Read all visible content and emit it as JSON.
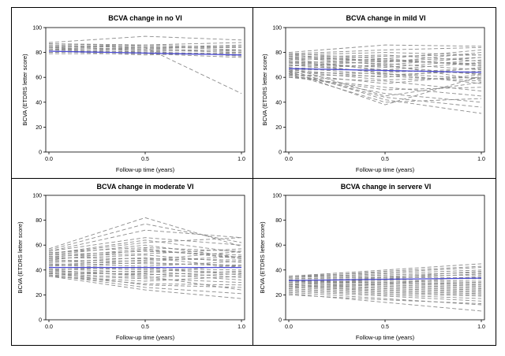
{
  "chart_data": [
    {
      "type": "line",
      "title": "BCVA change in no VI",
      "xlabel": "Follow-up time (years)",
      "ylabel": "BCVA (ETDRS letter score)",
      "xlim": [
        0,
        1
      ],
      "ylim": [
        0,
        100
      ],
      "x_ticks": [
        "0.0",
        "0.5",
        "1.0"
      ],
      "y_ticks": [
        "0",
        "20",
        "40",
        "60",
        "80",
        "100"
      ],
      "x": [
        0,
        0.5,
        1
      ],
      "series": [
        {
          "values": [
            88,
            93,
            90
          ]
        },
        {
          "values": [
            87,
            85,
            82
          ]
        },
        {
          "values": [
            86,
            84,
            47
          ]
        },
        {
          "values": [
            85,
            84,
            86
          ]
        },
        {
          "values": [
            85,
            82,
            80
          ]
        },
        {
          "values": [
            84,
            86,
            88
          ]
        },
        {
          "values": [
            83,
            83,
            85
          ]
        },
        {
          "values": [
            82,
            80,
            79
          ]
        },
        {
          "values": [
            82,
            84,
            84
          ]
        },
        {
          "values": [
            81,
            78,
            80
          ]
        },
        {
          "values": [
            80,
            81,
            77
          ]
        },
        {
          "values": [
            79,
            79,
            78
          ]
        },
        {
          "values": [
            84,
            81,
            82
          ]
        },
        {
          "values": [
            87,
            86,
            84
          ]
        },
        {
          "values": [
            80,
            83,
            81
          ]
        },
        {
          "values": [
            83,
            79,
            76
          ]
        }
      ],
      "mean_line": {
        "values": [
          81,
          79.5,
          78
        ],
        "color": "#4a4ad6"
      },
      "colors": {
        "individual": "#8c8c8c",
        "mean": "#4a4ad6"
      }
    },
    {
      "type": "line",
      "title": "BCVA change in mild VI",
      "xlabel": "Follow-up time (years)",
      "ylabel": "BCVA (ETDRS letter score)",
      "xlim": [
        0,
        1
      ],
      "ylim": [
        0,
        100
      ],
      "x_ticks": [
        "0.0",
        "0.5",
        "1.0"
      ],
      "y_ticks": [
        "0",
        "20",
        "40",
        "60",
        "80",
        "100"
      ],
      "x": [
        0,
        0.5,
        1
      ],
      "series": [
        {
          "values": [
            80,
            86,
            85
          ]
        },
        {
          "values": [
            79,
            82,
            84
          ]
        },
        {
          "values": [
            79,
            75,
            82
          ]
        },
        {
          "values": [
            78,
            80,
            78
          ]
        },
        {
          "values": [
            77,
            72,
            80
          ]
        },
        {
          "values": [
            76,
            78,
            73
          ]
        },
        {
          "values": [
            76,
            70,
            76
          ]
        },
        {
          "values": [
            75,
            74,
            70
          ]
        },
        {
          "values": [
            74,
            77,
            78
          ]
        },
        {
          "values": [
            73,
            66,
            72
          ]
        },
        {
          "values": [
            73,
            71,
            66
          ]
        },
        {
          "values": [
            72,
            68,
            74
          ]
        },
        {
          "values": [
            71,
            75,
            69
          ]
        },
        {
          "values": [
            70,
            64,
            67
          ]
        },
        {
          "values": [
            70,
            69,
            62
          ]
        },
        {
          "values": [
            69,
            73,
            71
          ]
        },
        {
          "values": [
            68,
            62,
            65
          ]
        },
        {
          "values": [
            67,
            70,
            58
          ]
        },
        {
          "values": [
            66,
            60,
            68
          ]
        },
        {
          "values": [
            66,
            66,
            63
          ]
        },
        {
          "values": [
            65,
            58,
            60
          ]
        },
        {
          "values": [
            64,
            63,
            55
          ]
        },
        {
          "values": [
            63,
            55,
            62
          ]
        },
        {
          "values": [
            62,
            61,
            57
          ]
        },
        {
          "values": [
            61,
            50,
            52
          ]
        },
        {
          "values": [
            60,
            57,
            49
          ]
        },
        {
          "values": [
            60,
            52,
            45
          ]
        },
        {
          "values": [
            62,
            47,
            40
          ]
        },
        {
          "values": [
            64,
            44,
            36
          ]
        },
        {
          "values": [
            66,
            42,
            31
          ]
        },
        {
          "values": [
            65,
            38,
            61
          ]
        },
        {
          "values": [
            63,
            40,
            43
          ]
        },
        {
          "values": [
            68,
            45,
            56
          ]
        },
        {
          "values": [
            72,
            63,
            59
          ]
        },
        {
          "values": [
            75,
            65,
            64
          ]
        },
        {
          "values": [
            78,
            73,
            76
          ]
        }
      ],
      "mean_line": {
        "values": [
          67,
          65.5,
          64
        ],
        "color": "#4a4ad6"
      },
      "colors": {
        "individual": "#8c8c8c",
        "mean": "#4a4ad6"
      }
    },
    {
      "type": "line",
      "title": "BCVA change in moderate VI",
      "xlabel": "Follow-up time (years)",
      "ylabel": "BCVA (ETDRS letter score)",
      "xlim": [
        0,
        1
      ],
      "ylim": [
        0,
        100
      ],
      "x_ticks": [
        "0.0",
        "0.5",
        "1.0"
      ],
      "y_ticks": [
        "0",
        "20",
        "40",
        "60",
        "80",
        "100"
      ],
      "x": [
        0,
        0.5,
        1
      ],
      "series": [
        {
          "values": [
            57,
            82,
            59
          ]
        },
        {
          "values": [
            56,
            77,
            62
          ]
        },
        {
          "values": [
            55,
            72,
            66
          ]
        },
        {
          "values": [
            55,
            66,
            60
          ]
        },
        {
          "values": [
            54,
            58,
            55
          ]
        },
        {
          "values": [
            53,
            62,
            66
          ]
        },
        {
          "values": [
            52,
            55,
            52
          ]
        },
        {
          "values": [
            52,
            60,
            50
          ]
        },
        {
          "values": [
            51,
            53,
            57
          ]
        },
        {
          "values": [
            50,
            49,
            48
          ]
        },
        {
          "values": [
            49,
            52,
            46
          ]
        },
        {
          "values": [
            48,
            47,
            51
          ]
        },
        {
          "values": [
            47,
            45,
            44
          ]
        },
        {
          "values": [
            46,
            50,
            42
          ]
        },
        {
          "values": [
            45,
            43,
            47
          ]
        },
        {
          "values": [
            44,
            41,
            40
          ]
        },
        {
          "values": [
            43,
            46,
            43
          ]
        },
        {
          "values": [
            42,
            40,
            38
          ]
        },
        {
          "values": [
            41,
            38,
            44
          ]
        },
        {
          "values": [
            40,
            42,
            36
          ]
        },
        {
          "values": [
            39,
            36,
            39
          ]
        },
        {
          "values": [
            38,
            39,
            34
          ]
        },
        {
          "values": [
            37,
            34,
            37
          ]
        },
        {
          "values": [
            37,
            37,
            32
          ]
        },
        {
          "values": [
            36,
            33,
            30
          ]
        },
        {
          "values": [
            35,
            31,
            35
          ]
        },
        {
          "values": [
            35,
            29,
            28
          ]
        },
        {
          "values": [
            38,
            28,
            26
          ]
        },
        {
          "values": [
            36,
            26,
            21
          ]
        },
        {
          "values": [
            35,
            24,
            17
          ]
        },
        {
          "values": [
            40,
            35,
            24
          ]
        },
        {
          "values": [
            44,
            48,
            55
          ]
        },
        {
          "values": [
            48,
            56,
            50
          ]
        },
        {
          "values": [
            53,
            64,
            54
          ]
        },
        {
          "values": [
            50,
            57,
            49
          ]
        }
      ],
      "mean_line": {
        "values": [
          42,
          42,
          42
        ],
        "color": "#4a4ad6"
      },
      "colors": {
        "individual": "#8c8c8c",
        "mean": "#4a4ad6"
      }
    },
    {
      "type": "line",
      "title": "BCVA change in servere VI",
      "xlabel": "Follow-up time (years)",
      "ylabel": "BCVA (ETDRS letter score)",
      "xlim": [
        0,
        1
      ],
      "ylim": [
        0,
        100
      ],
      "x_ticks": [
        "0.0",
        "0.5",
        "1.0"
      ],
      "y_ticks": [
        "0",
        "20",
        "40",
        "60",
        "80",
        "100"
      ],
      "x": [
        0,
        0.5,
        1
      ],
      "series": [
        {
          "values": [
            35,
            40,
            45
          ]
        },
        {
          "values": [
            35,
            38,
            42
          ]
        },
        {
          "values": [
            34,
            37,
            40
          ]
        },
        {
          "values": [
            34,
            36,
            38
          ]
        },
        {
          "values": [
            33,
            35,
            36
          ]
        },
        {
          "values": [
            33,
            34,
            34
          ]
        },
        {
          "values": [
            32,
            33,
            33
          ]
        },
        {
          "values": [
            32,
            32,
            31
          ]
        },
        {
          "values": [
            31,
            31,
            30
          ]
        },
        {
          "values": [
            31,
            30,
            29
          ]
        },
        {
          "values": [
            30,
            30,
            28
          ]
        },
        {
          "values": [
            30,
            29,
            27
          ]
        },
        {
          "values": [
            29,
            28,
            26
          ]
        },
        {
          "values": [
            29,
            27,
            25
          ]
        },
        {
          "values": [
            28,
            26,
            24
          ]
        },
        {
          "values": [
            28,
            25,
            23
          ]
        },
        {
          "values": [
            27,
            24,
            22
          ]
        },
        {
          "values": [
            27,
            23,
            21
          ]
        },
        {
          "values": [
            26,
            22,
            20
          ]
        },
        {
          "values": [
            25,
            21,
            19
          ]
        },
        {
          "values": [
            24,
            20,
            17
          ]
        },
        {
          "values": [
            23,
            19,
            15
          ]
        },
        {
          "values": [
            22,
            17,
            12
          ]
        },
        {
          "values": [
            21,
            14,
            7
          ]
        },
        {
          "values": [
            20,
            16,
            13
          ]
        },
        {
          "values": [
            26,
            29,
            35
          ]
        },
        {
          "values": [
            30,
            34,
            39
          ]
        },
        {
          "values": [
            28,
            33,
            37
          ]
        },
        {
          "values": [
            34,
            39,
            43
          ]
        }
      ],
      "mean_line": {
        "values": [
          31.5,
          32.5,
          33.5
        ],
        "color": "#4a4ad6"
      },
      "colors": {
        "individual": "#8c8c8c",
        "mean": "#4a4ad6"
      }
    }
  ]
}
